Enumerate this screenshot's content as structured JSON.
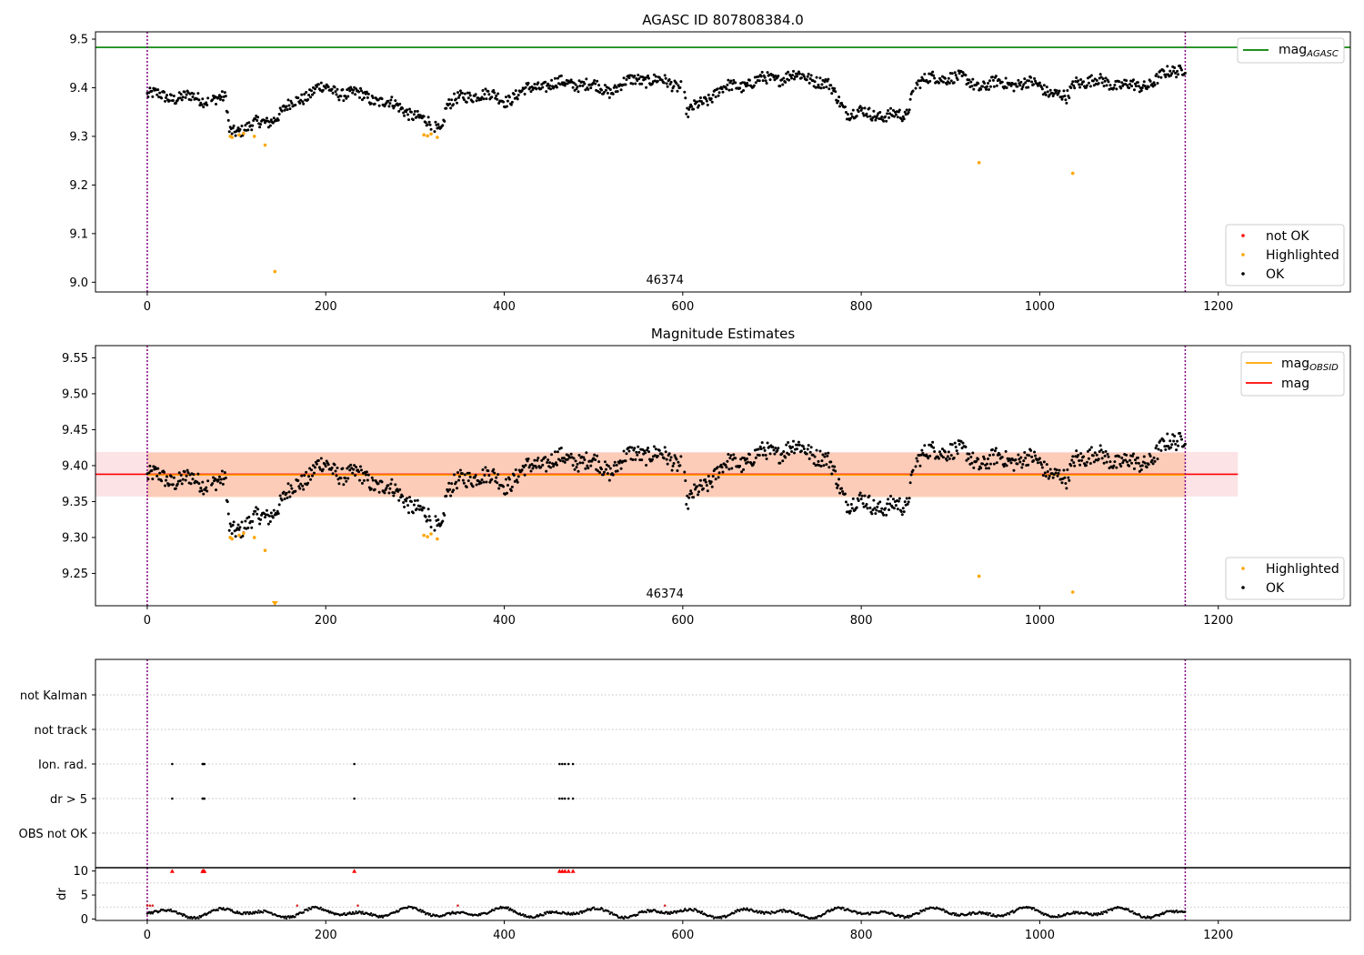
{
  "chart_data": [
    {
      "type": "scatter",
      "title": "AGASC ID 807808384.0",
      "xlabel": "",
      "ylabel": "",
      "xlim": [
        -58,
        1348
      ],
      "ylim": [
        8.98,
        9.515
      ],
      "xticks": [
        0,
        200,
        400,
        600,
        800,
        1000,
        1200
      ],
      "xtick_labels": [
        "0",
        "200",
        "400",
        "600",
        "800",
        "1000",
        "1200"
      ],
      "yticks": [
        9.0,
        9.1,
        9.2,
        9.3,
        9.4,
        9.5
      ],
      "ytick_labels": [
        "9.0",
        "9.1",
        "9.2",
        "9.3",
        "9.4",
        "9.5"
      ],
      "vlines": [
        0,
        1163
      ],
      "hlines": [
        {
          "name": "mag",
          "subscript": "AGASC",
          "y": 9.483,
          "color": "#008000"
        }
      ],
      "annotation": "46374",
      "legend_lines": [
        {
          "label": "mag",
          "subscript": "AGASC",
          "color": "#008000"
        }
      ],
      "legend_points": [
        {
          "label": "not OK",
          "color": "#ff0000"
        },
        {
          "label": "Highlighted",
          "color": "#ffa500"
        },
        {
          "label": "OK",
          "color": "#000000"
        }
      ],
      "series": [
        {
          "name": "OK",
          "color": "#000000",
          "trend": [
            [
              0,
              9.385
            ],
            [
              40,
              9.38
            ],
            [
              88,
              9.375
            ],
            [
              92,
              9.31
            ],
            [
              135,
              9.33
            ],
            [
              150,
              9.35
            ],
            [
              190,
              9.4
            ],
            [
              250,
              9.38
            ],
            [
              290,
              9.355
            ],
            [
              310,
              9.33
            ],
            [
              330,
              9.315
            ],
            [
              335,
              9.365
            ],
            [
              370,
              9.39
            ],
            [
              400,
              9.375
            ],
            [
              440,
              9.405
            ],
            [
              480,
              9.41
            ],
            [
              520,
              9.395
            ],
            [
              550,
              9.42
            ],
            [
              600,
              9.405
            ],
            [
              605,
              9.345
            ],
            [
              640,
              9.395
            ],
            [
              700,
              9.42
            ],
            [
              740,
              9.425
            ],
            [
              765,
              9.4
            ],
            [
              785,
              9.35
            ],
            [
              850,
              9.34
            ],
            [
              860,
              9.41
            ],
            [
              900,
              9.425
            ],
            [
              930,
              9.405
            ],
            [
              970,
              9.41
            ],
            [
              1000,
              9.405
            ],
            [
              1030,
              9.375
            ],
            [
              1040,
              9.415
            ],
            [
              1080,
              9.41
            ],
            [
              1110,
              9.4
            ],
            [
              1140,
              9.425
            ],
            [
              1163,
              9.445
            ]
          ]
        },
        {
          "name": "Highlighted",
          "color": "#ffa500",
          "points": [
            [
              93,
              9.3
            ],
            [
              95,
              9.298
            ],
            [
              103,
              9.303
            ],
            [
              108,
              9.306
            ],
            [
              120,
              9.3
            ],
            [
              132,
              9.282
            ],
            [
              143,
              9.022
            ],
            [
              310,
              9.303
            ],
            [
              314,
              9.301
            ],
            [
              318,
              9.305
            ],
            [
              325,
              9.298
            ],
            [
              932,
              9.246
            ],
            [
              1037,
              9.224
            ]
          ]
        },
        {
          "name": "not OK",
          "color": "#ff0000",
          "points": []
        }
      ]
    },
    {
      "type": "scatter",
      "title": "Magnitude Estimates",
      "xlabel": "",
      "ylabel": "",
      "xlim": [
        -58,
        1348
      ],
      "ylim": [
        9.205,
        9.567
      ],
      "xticks": [
        0,
        200,
        400,
        600,
        800,
        1000,
        1200
      ],
      "xtick_labels": [
        "0",
        "200",
        "400",
        "600",
        "800",
        "1000",
        "1200"
      ],
      "yticks": [
        9.25,
        9.3,
        9.35,
        9.4,
        9.45,
        9.5,
        9.55
      ],
      "ytick_labels": [
        "9.25",
        "9.30",
        "9.35",
        "9.40",
        "9.45",
        "9.50",
        "9.55"
      ],
      "vlines": [
        0,
        1163
      ],
      "bands": [
        {
          "x0": -58,
          "x1": 1222,
          "y0": 9.357,
          "y1": 9.419,
          "color": "#f7c0c8",
          "opacity": 0.45
        },
        {
          "x0": 0,
          "x1": 1163,
          "y0": 9.356,
          "y1": 9.418,
          "color": "#ffa060",
          "opacity": 0.35
        }
      ],
      "hlines": [
        {
          "name": "mag",
          "y": 9.388,
          "x0": -58,
          "x1": 1222,
          "color": "#ff0000"
        },
        {
          "name": "mag",
          "subscript": "OBSID",
          "y": 9.387,
          "x0": 0,
          "x1": 1163,
          "color": "#ffa500"
        }
      ],
      "annotation": "46374",
      "legend_lines": [
        {
          "label": "mag",
          "subscript": "OBSID",
          "color": "#ffa500"
        },
        {
          "label": "mag",
          "subscript": "",
          "color": "#ff0000"
        }
      ],
      "legend_points": [
        {
          "label": "Highlighted",
          "color": "#ffa500"
        },
        {
          "label": "OK",
          "color": "#000000"
        }
      ],
      "series": [
        {
          "name": "OK",
          "color": "#000000",
          "ref": "same as panel 1"
        },
        {
          "name": "Highlighted",
          "color": "#ffa500",
          "points": [
            [
              93,
              9.3
            ],
            [
              95,
              9.298
            ],
            [
              103,
              9.303
            ],
            [
              108,
              9.306
            ],
            [
              120,
              9.3
            ],
            [
              132,
              9.282
            ],
            [
              310,
              9.303
            ],
            [
              314,
              9.301
            ],
            [
              318,
              9.305
            ],
            [
              325,
              9.298
            ],
            [
              932,
              9.246
            ],
            [
              1037,
              9.224
            ]
          ]
        },
        {
          "name": "Highlighted (below axis)",
          "color": "#ffa500",
          "marker": "triangle-down",
          "points": [
            [
              143,
              9.205
            ]
          ]
        }
      ]
    },
    {
      "type": "scatter",
      "title": "",
      "xlim": [
        -58,
        1348
      ],
      "category_labels": [
        "not Kalman",
        "not track",
        "Ion. rad.",
        "dr > 5",
        "OBS not OK"
      ],
      "flags": {
        "Ion. rad.": [
          28,
          62,
          63,
          64,
          232,
          462,
          465,
          468,
          472,
          477
        ],
        "dr > 5": [
          28,
          62,
          63,
          64,
          232,
          462,
          465,
          468,
          472,
          477
        ]
      }
    },
    {
      "type": "scatter",
      "title": "",
      "xlabel": "",
      "ylabel": "dr",
      "xlim": [
        -58,
        1348
      ],
      "ylim": [
        -0.3,
        10.7
      ],
      "xticks": [
        0,
        200,
        400,
        600,
        800,
        1000,
        1200
      ],
      "xtick_labels": [
        "0",
        "200",
        "400",
        "600",
        "800",
        "1000",
        "1200"
      ],
      "yticks": [
        0,
        5,
        10
      ],
      "ytick_labels": [
        "0",
        "5",
        "10"
      ],
      "clip_marker_x": [
        28,
        62,
        63,
        64,
        232,
        462,
        465,
        468,
        472,
        477
      ]
    }
  ]
}
